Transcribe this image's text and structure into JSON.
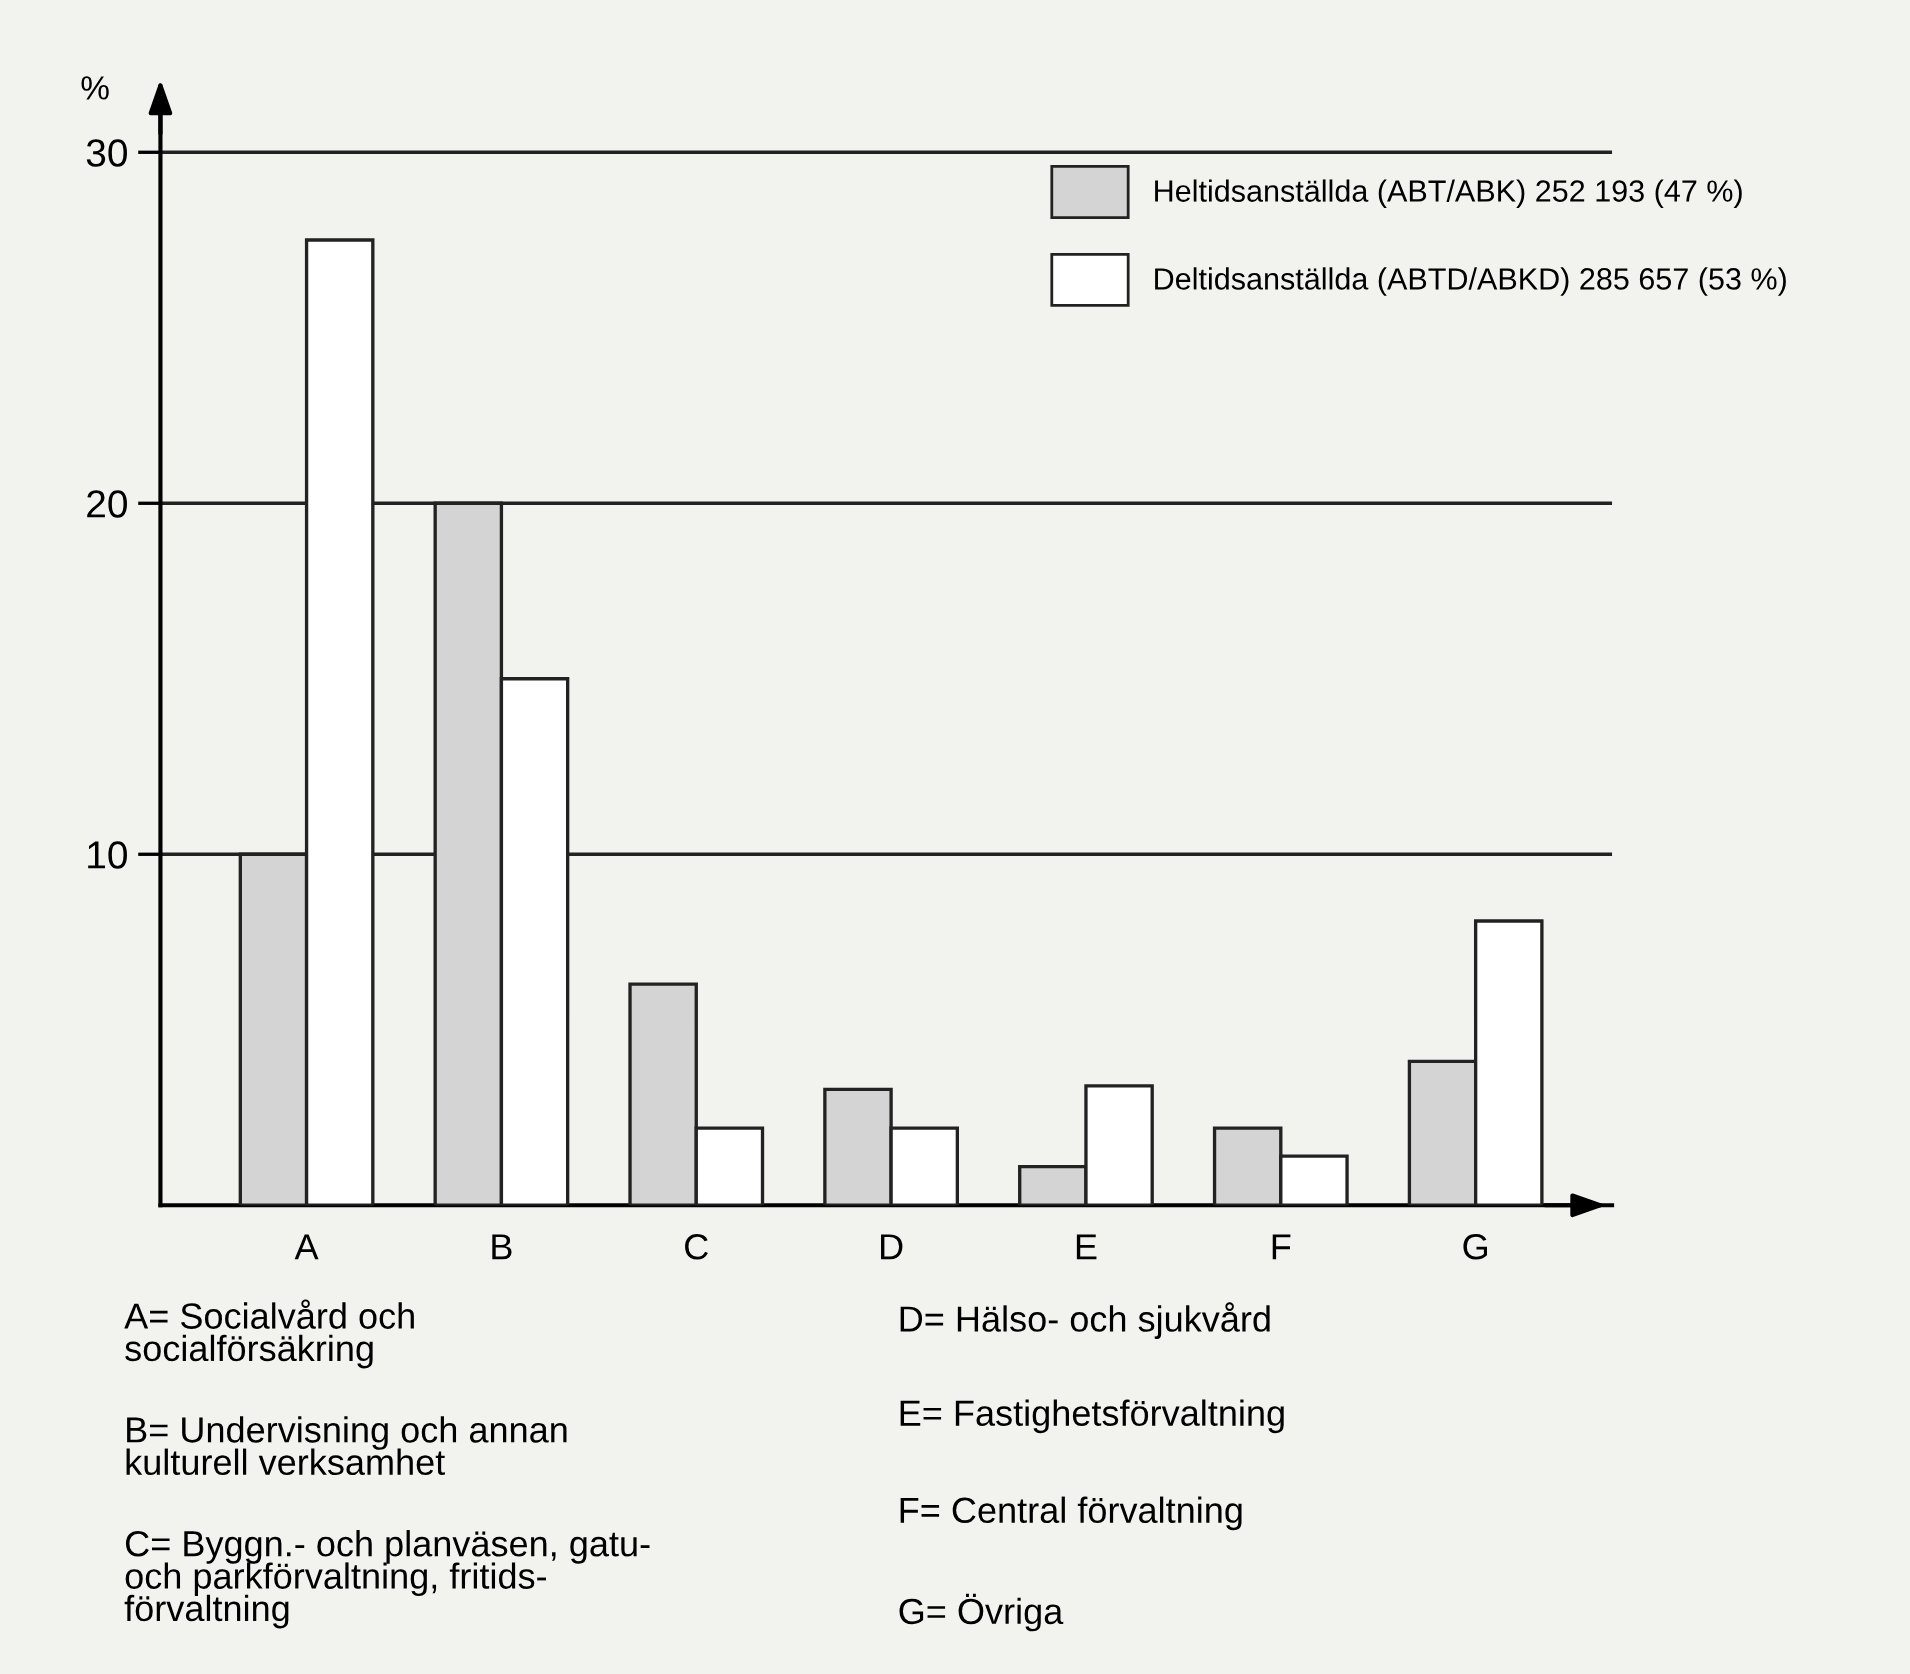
{
  "chart_data": {
    "type": "bar",
    "ylabel": "%",
    "categories": [
      "A",
      "B",
      "C",
      "D",
      "E",
      "F",
      "G"
    ],
    "series": [
      {
        "name": "Heltidsanställda (ABT/ABK) 252 193 (47 %)",
        "color": "#d4d4d4",
        "values": [
          10,
          20,
          6.3,
          3.3,
          1.1,
          2.2,
          4.1
        ]
      },
      {
        "name": "Deltidsanställda (ABTD/ABKD) 285 657 (53 %)",
        "color": "#ffffff",
        "values": [
          27.5,
          15,
          2.2,
          2.2,
          3.4,
          1.4,
          8.1
        ]
      }
    ],
    "ylim": [
      0,
      31
    ],
    "yticks": [
      10,
      20,
      30
    ],
    "grid": "y",
    "legend": "top right",
    "annotations": [
      "A= Socialvård och\nsocialförsäkring",
      "B= Undervisning och annan\nkulturell verksamhet",
      "C= Byggn.- och planväsen, gatu-\noch parkförvaltning, fritids-\nförvaltning",
      "D= Hälso- och sjukvård",
      "E= Fastighetsförvaltning",
      "F= Central förvaltning",
      "G= Övriga"
    ]
  }
}
